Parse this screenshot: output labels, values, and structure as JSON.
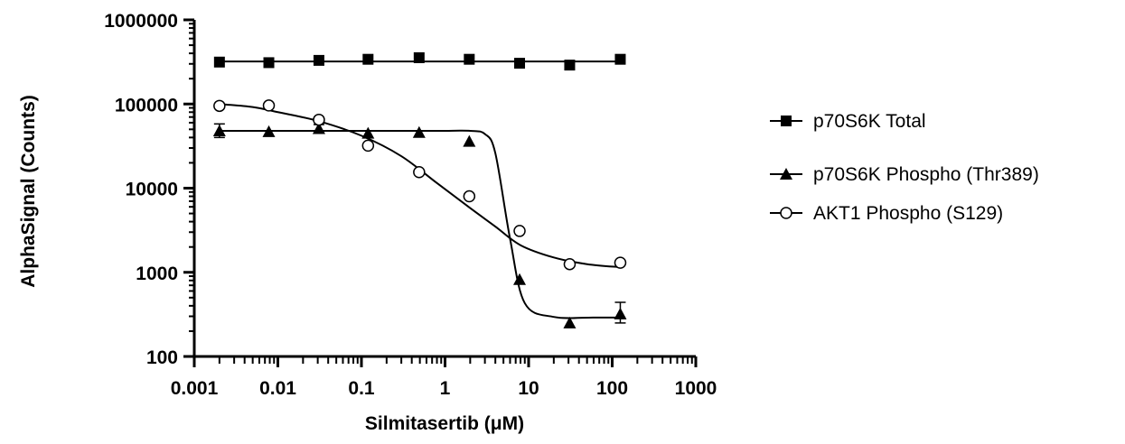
{
  "chart_data": {
    "type": "scatter",
    "xlabel": "Silmitasertib (μM)",
    "ylabel": "AlphaSignal (Counts)",
    "x_scale": "log",
    "y_scale": "log",
    "xlim": [
      0.001,
      1000
    ],
    "ylim": [
      100,
      1000000
    ],
    "x_ticks": [
      0.001,
      0.01,
      0.1,
      1,
      10,
      100,
      1000
    ],
    "x_tick_labels": [
      "0.001",
      "0.01",
      "0.1",
      "1",
      "10",
      "100",
      "1000"
    ],
    "y_ticks": [
      100,
      1000,
      10000,
      100000,
      1000000
    ],
    "y_tick_labels": [
      "100",
      "1000",
      "10000",
      "100000",
      "1000000"
    ],
    "grid": false,
    "legend_position": "right",
    "x": [
      0.002,
      0.0078,
      0.031,
      0.12,
      0.49,
      1.95,
      7.8,
      31,
      125
    ],
    "series": [
      {
        "name": "p70S6K Total",
        "marker": "square-filled",
        "color": "#000000",
        "values": [
          315000,
          310000,
          330000,
          340000,
          355000,
          340000,
          305000,
          290000,
          340000
        ],
        "fit": [
          320000,
          320000,
          320000,
          320000,
          320000,
          320000,
          320000,
          320000,
          320000
        ]
      },
      {
        "name": "p70S6K  Phospho (Thr389)",
        "marker": "triangle-filled",
        "color": "#000000",
        "values": [
          48000,
          47000,
          51000,
          45000,
          46000,
          36000,
          820,
          250,
          320
        ],
        "error_upper": [
          58000,
          null,
          57000,
          null,
          null,
          null,
          null,
          null,
          440
        ],
        "error_lower": [
          40000,
          null,
          46000,
          null,
          null,
          null,
          null,
          null,
          250
        ],
        "fit": [
          48000,
          48000,
          48000,
          48000,
          48000,
          48000,
          44000,
          26000,
          2500,
          430,
          295,
          290,
          290
        ],
        "fit_x": [
          0.002,
          0.01,
          0.1,
          0.5,
          1.0,
          2.0,
          3.0,
          4.0,
          6.0,
          9.0,
          20,
          60,
          125
        ]
      },
      {
        "name": "AKT1 Phospho (S129)",
        "marker": "circle-open",
        "color": "#000000",
        "values": [
          95000,
          96000,
          65000,
          32000,
          15500,
          8000,
          3100,
          1250,
          1300
        ],
        "fit": [
          100000,
          92000,
          80000,
          63000,
          42000,
          24000,
          11500,
          5800,
          3500,
          2100,
          1500,
          1250,
          1150
        ],
        "fit_x": [
          0.002,
          0.005,
          0.01,
          0.03,
          0.1,
          0.3,
          0.8,
          2,
          4,
          8,
          20,
          50,
          125
        ]
      }
    ]
  }
}
